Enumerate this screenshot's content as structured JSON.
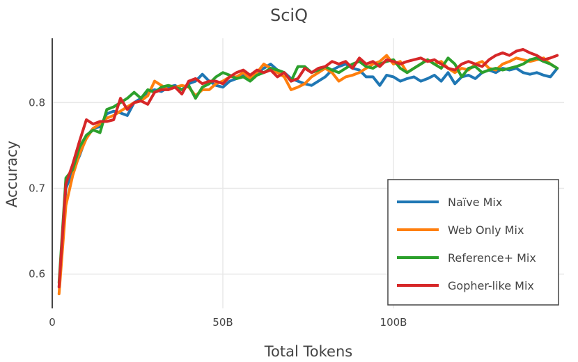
{
  "chart_data": {
    "type": "line",
    "title": "SciQ",
    "xlabel": "Total Tokens",
    "ylabel": "Accuracy",
    "xlim": [
      0,
      150
    ],
    "ylim": [
      0.56,
      0.875
    ],
    "x_ticks": [
      {
        "value": 0,
        "label": "0"
      },
      {
        "value": 50,
        "label": "50B"
      },
      {
        "value": 100,
        "label": "100B"
      }
    ],
    "y_ticks": [
      {
        "value": 0.6,
        "label": "0.6"
      },
      {
        "value": 0.7,
        "label": "0.7"
      },
      {
        "value": 0.8,
        "label": "0.8"
      }
    ],
    "grid": true,
    "legend_position": "bottom-right",
    "series": [
      {
        "name": "Naïve Mix",
        "color": "#1f77b4",
        "points": [
          [
            2,
            0.585
          ],
          [
            4,
            0.7
          ],
          [
            6,
            0.72
          ],
          [
            8,
            0.738
          ],
          [
            10,
            0.76
          ],
          [
            12,
            0.77
          ],
          [
            14,
            0.772
          ],
          [
            16,
            0.787
          ],
          [
            18,
            0.79
          ],
          [
            20,
            0.788
          ],
          [
            22,
            0.785
          ],
          [
            24,
            0.8
          ],
          [
            26,
            0.805
          ],
          [
            28,
            0.812
          ],
          [
            30,
            0.815
          ],
          [
            32,
            0.813
          ],
          [
            34,
            0.818
          ],
          [
            36,
            0.82
          ],
          [
            38,
            0.815
          ],
          [
            40,
            0.822
          ],
          [
            42,
            0.825
          ],
          [
            44,
            0.833
          ],
          [
            46,
            0.825
          ],
          [
            48,
            0.82
          ],
          [
            50,
            0.818
          ],
          [
            52,
            0.825
          ],
          [
            54,
            0.828
          ],
          [
            56,
            0.832
          ],
          [
            58,
            0.83
          ],
          [
            60,
            0.835
          ],
          [
            62,
            0.84
          ],
          [
            64,
            0.845
          ],
          [
            66,
            0.838
          ],
          [
            68,
            0.835
          ],
          [
            70,
            0.828
          ],
          [
            72,
            0.825
          ],
          [
            74,
            0.822
          ],
          [
            76,
            0.82
          ],
          [
            78,
            0.825
          ],
          [
            80,
            0.83
          ],
          [
            82,
            0.838
          ],
          [
            84,
            0.842
          ],
          [
            86,
            0.845
          ],
          [
            88,
            0.84
          ],
          [
            90,
            0.838
          ],
          [
            92,
            0.83
          ],
          [
            94,
            0.83
          ],
          [
            96,
            0.82
          ],
          [
            98,
            0.832
          ],
          [
            100,
            0.83
          ],
          [
            102,
            0.825
          ],
          [
            104,
            0.828
          ],
          [
            106,
            0.83
          ],
          [
            108,
            0.825
          ],
          [
            110,
            0.828
          ],
          [
            112,
            0.832
          ],
          [
            114,
            0.825
          ],
          [
            116,
            0.835
          ],
          [
            118,
            0.822
          ],
          [
            120,
            0.83
          ],
          [
            122,
            0.832
          ],
          [
            124,
            0.828
          ],
          [
            126,
            0.835
          ],
          [
            128,
            0.838
          ],
          [
            130,
            0.835
          ],
          [
            132,
            0.84
          ],
          [
            134,
            0.838
          ],
          [
            136,
            0.84
          ],
          [
            138,
            0.835
          ],
          [
            140,
            0.833
          ],
          [
            142,
            0.835
          ],
          [
            144,
            0.832
          ],
          [
            146,
            0.83
          ],
          [
            148,
            0.84
          ]
        ]
      },
      {
        "name": "Web Only Mix",
        "color": "#ff7f0e",
        "points": [
          [
            2,
            0.577
          ],
          [
            4,
            0.68
          ],
          [
            6,
            0.715
          ],
          [
            8,
            0.74
          ],
          [
            10,
            0.758
          ],
          [
            12,
            0.77
          ],
          [
            14,
            0.775
          ],
          [
            16,
            0.782
          ],
          [
            18,
            0.785
          ],
          [
            20,
            0.79
          ],
          [
            22,
            0.795
          ],
          [
            24,
            0.8
          ],
          [
            26,
            0.802
          ],
          [
            28,
            0.808
          ],
          [
            30,
            0.825
          ],
          [
            32,
            0.82
          ],
          [
            34,
            0.815
          ],
          [
            36,
            0.818
          ],
          [
            38,
            0.82
          ],
          [
            40,
            0.818
          ],
          [
            42,
            0.808
          ],
          [
            44,
            0.815
          ],
          [
            46,
            0.815
          ],
          [
            48,
            0.822
          ],
          [
            50,
            0.825
          ],
          [
            52,
            0.83
          ],
          [
            54,
            0.83
          ],
          [
            56,
            0.835
          ],
          [
            58,
            0.828
          ],
          [
            60,
            0.835
          ],
          [
            62,
            0.845
          ],
          [
            64,
            0.84
          ],
          [
            66,
            0.835
          ],
          [
            68,
            0.83
          ],
          [
            70,
            0.815
          ],
          [
            72,
            0.818
          ],
          [
            74,
            0.822
          ],
          [
            76,
            0.83
          ],
          [
            78,
            0.835
          ],
          [
            80,
            0.84
          ],
          [
            82,
            0.835
          ],
          [
            84,
            0.825
          ],
          [
            86,
            0.83
          ],
          [
            88,
            0.832
          ],
          [
            90,
            0.835
          ],
          [
            92,
            0.84
          ],
          [
            94,
            0.845
          ],
          [
            96,
            0.848
          ],
          [
            98,
            0.855
          ],
          [
            100,
            0.845
          ],
          [
            102,
            0.848
          ],
          [
            104,
            0.835
          ],
          [
            106,
            0.84
          ],
          [
            108,
            0.845
          ],
          [
            110,
            0.85
          ],
          [
            112,
            0.845
          ],
          [
            114,
            0.848
          ],
          [
            116,
            0.84
          ],
          [
            118,
            0.835
          ],
          [
            120,
            0.84
          ],
          [
            122,
            0.838
          ],
          [
            124,
            0.845
          ],
          [
            126,
            0.848
          ],
          [
            128,
            0.84
          ],
          [
            130,
            0.838
          ],
          [
            132,
            0.845
          ],
          [
            134,
            0.848
          ],
          [
            136,
            0.852
          ],
          [
            138,
            0.85
          ],
          [
            140,
            0.848
          ],
          [
            142,
            0.85
          ],
          [
            144,
            0.852
          ],
          [
            146,
            0.845
          ],
          [
            148,
            0.84
          ]
        ]
      },
      {
        "name": "Reference+ Mix",
        "color": "#2ca02c",
        "points": [
          [
            2,
            0.59
          ],
          [
            4,
            0.712
          ],
          [
            6,
            0.722
          ],
          [
            8,
            0.748
          ],
          [
            10,
            0.762
          ],
          [
            12,
            0.768
          ],
          [
            14,
            0.765
          ],
          [
            16,
            0.792
          ],
          [
            18,
            0.795
          ],
          [
            20,
            0.8
          ],
          [
            22,
            0.805
          ],
          [
            24,
            0.812
          ],
          [
            26,
            0.805
          ],
          [
            28,
            0.815
          ],
          [
            30,
            0.812
          ],
          [
            32,
            0.818
          ],
          [
            34,
            0.82
          ],
          [
            36,
            0.818
          ],
          [
            38,
            0.815
          ],
          [
            40,
            0.82
          ],
          [
            42,
            0.805
          ],
          [
            44,
            0.818
          ],
          [
            46,
            0.822
          ],
          [
            48,
            0.83
          ],
          [
            50,
            0.835
          ],
          [
            52,
            0.832
          ],
          [
            54,
            0.828
          ],
          [
            56,
            0.83
          ],
          [
            58,
            0.825
          ],
          [
            60,
            0.832
          ],
          [
            62,
            0.835
          ],
          [
            64,
            0.84
          ],
          [
            66,
            0.838
          ],
          [
            68,
            0.835
          ],
          [
            70,
            0.825
          ],
          [
            72,
            0.842
          ],
          [
            74,
            0.842
          ],
          [
            76,
            0.835
          ],
          [
            78,
            0.838
          ],
          [
            80,
            0.842
          ],
          [
            82,
            0.838
          ],
          [
            84,
            0.835
          ],
          [
            86,
            0.84
          ],
          [
            88,
            0.845
          ],
          [
            90,
            0.848
          ],
          [
            92,
            0.842
          ],
          [
            94,
            0.84
          ],
          [
            96,
            0.845
          ],
          [
            98,
            0.848
          ],
          [
            100,
            0.85
          ],
          [
            102,
            0.84
          ],
          [
            104,
            0.835
          ],
          [
            106,
            0.84
          ],
          [
            108,
            0.845
          ],
          [
            110,
            0.85
          ],
          [
            112,
            0.845
          ],
          [
            114,
            0.84
          ],
          [
            116,
            0.852
          ],
          [
            118,
            0.845
          ],
          [
            120,
            0.83
          ],
          [
            122,
            0.84
          ],
          [
            124,
            0.842
          ],
          [
            126,
            0.835
          ],
          [
            128,
            0.838
          ],
          [
            130,
            0.84
          ],
          [
            132,
            0.838
          ],
          [
            134,
            0.84
          ],
          [
            136,
            0.842
          ],
          [
            138,
            0.845
          ],
          [
            140,
            0.85
          ],
          [
            142,
            0.852
          ],
          [
            144,
            0.848
          ],
          [
            146,
            0.845
          ],
          [
            148,
            0.84
          ]
        ]
      },
      {
        "name": "Gopher-like Mix",
        "color": "#d62728",
        "points": [
          [
            2,
            0.585
          ],
          [
            4,
            0.705
          ],
          [
            6,
            0.728
          ],
          [
            8,
            0.755
          ],
          [
            10,
            0.78
          ],
          [
            12,
            0.775
          ],
          [
            14,
            0.778
          ],
          [
            16,
            0.778
          ],
          [
            18,
            0.78
          ],
          [
            20,
            0.805
          ],
          [
            22,
            0.792
          ],
          [
            24,
            0.8
          ],
          [
            26,
            0.802
          ],
          [
            28,
            0.798
          ],
          [
            30,
            0.812
          ],
          [
            32,
            0.815
          ],
          [
            34,
            0.815
          ],
          [
            36,
            0.818
          ],
          [
            38,
            0.81
          ],
          [
            40,
            0.825
          ],
          [
            42,
            0.828
          ],
          [
            44,
            0.822
          ],
          [
            46,
            0.825
          ],
          [
            48,
            0.825
          ],
          [
            50,
            0.822
          ],
          [
            52,
            0.83
          ],
          [
            54,
            0.835
          ],
          [
            56,
            0.838
          ],
          [
            58,
            0.832
          ],
          [
            60,
            0.838
          ],
          [
            62,
            0.835
          ],
          [
            64,
            0.838
          ],
          [
            66,
            0.83
          ],
          [
            68,
            0.835
          ],
          [
            70,
            0.825
          ],
          [
            72,
            0.828
          ],
          [
            74,
            0.84
          ],
          [
            76,
            0.835
          ],
          [
            78,
            0.84
          ],
          [
            80,
            0.842
          ],
          [
            82,
            0.848
          ],
          [
            84,
            0.845
          ],
          [
            86,
            0.848
          ],
          [
            88,
            0.84
          ],
          [
            90,
            0.852
          ],
          [
            92,
            0.845
          ],
          [
            94,
            0.848
          ],
          [
            96,
            0.842
          ],
          [
            98,
            0.85
          ],
          [
            100,
            0.848
          ],
          [
            102,
            0.845
          ],
          [
            104,
            0.848
          ],
          [
            106,
            0.85
          ],
          [
            108,
            0.852
          ],
          [
            110,
            0.848
          ],
          [
            112,
            0.85
          ],
          [
            114,
            0.845
          ],
          [
            116,
            0.84
          ],
          [
            118,
            0.838
          ],
          [
            120,
            0.845
          ],
          [
            122,
            0.848
          ],
          [
            124,
            0.845
          ],
          [
            126,
            0.842
          ],
          [
            128,
            0.85
          ],
          [
            130,
            0.855
          ],
          [
            132,
            0.858
          ],
          [
            134,
            0.855
          ],
          [
            136,
            0.86
          ],
          [
            138,
            0.862
          ],
          [
            140,
            0.858
          ],
          [
            142,
            0.855
          ],
          [
            144,
            0.85
          ],
          [
            146,
            0.852
          ],
          [
            148,
            0.855
          ]
        ]
      }
    ]
  }
}
